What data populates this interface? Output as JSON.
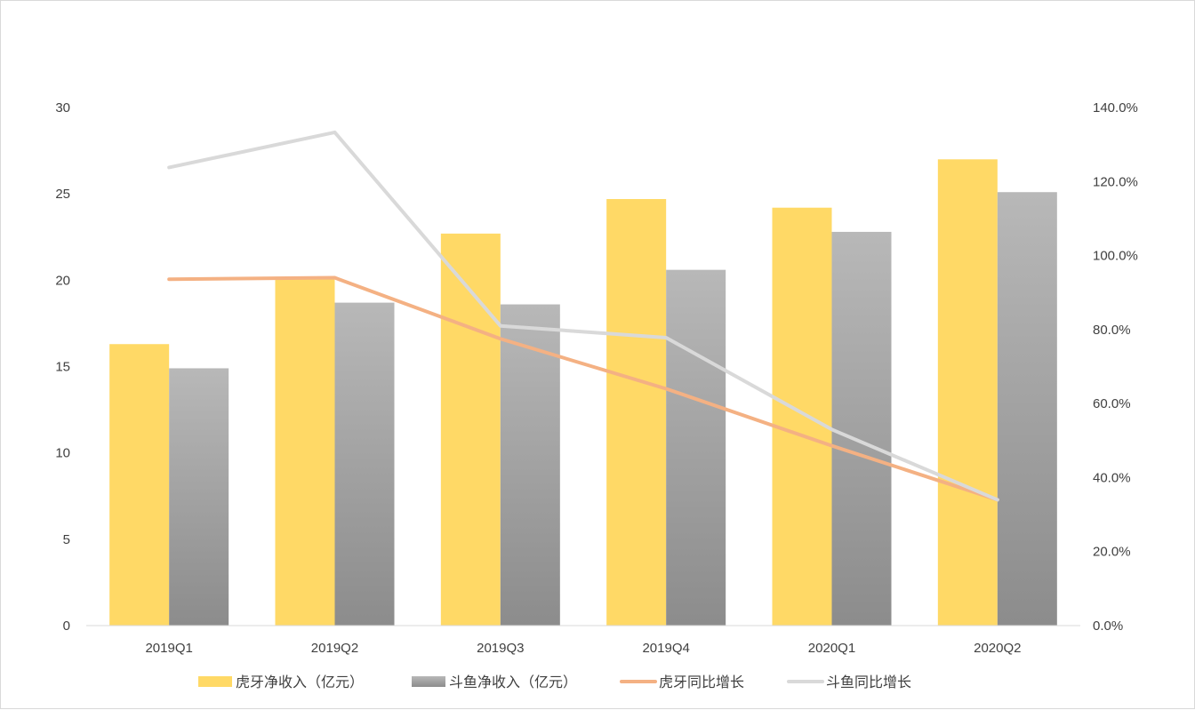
{
  "chart_data": {
    "type": "bar",
    "categories": [
      "2019Q1",
      "2019Q2",
      "2019Q3",
      "2019Q4",
      "2020Q1",
      "2020Q2"
    ],
    "series": [
      {
        "name": "虎牙净收入（亿元）",
        "kind": "bar",
        "axis": "left",
        "color": "#FFD966",
        "values": [
          16.3,
          20.2,
          22.7,
          24.7,
          24.2,
          27.0
        ]
      },
      {
        "name": "斗鱼净收入（亿元）",
        "kind": "bar",
        "axis": "left",
        "color": "#A6A6A6",
        "values": [
          14.9,
          18.7,
          18.6,
          20.6,
          22.8,
          25.1
        ]
      },
      {
        "name": "虎牙同比增长",
        "kind": "line",
        "axis": "right",
        "color": "#F4B183",
        "values": [
          0.936,
          0.94,
          0.775,
          0.64,
          0.486,
          0.34
        ]
      },
      {
        "name": "斗鱼同比增长",
        "kind": "line",
        "axis": "right",
        "color": "#D9D9D9",
        "values": [
          1.238,
          1.333,
          0.81,
          0.778,
          0.53,
          0.34
        ]
      }
    ],
    "y_left": {
      "min": 0,
      "max": 30,
      "ticks": [
        "0",
        "5",
        "10",
        "15",
        "20",
        "25",
        "30"
      ]
    },
    "y_right": {
      "min": 0,
      "max": 1.4,
      "ticks": [
        "0.0%",
        "20.0%",
        "40.0%",
        "60.0%",
        "80.0%",
        "100.0%",
        "120.0%",
        "140.0%"
      ]
    },
    "title": "",
    "xlabel": "",
    "ylabel": "",
    "grid": false,
    "legend_position": "bottom"
  }
}
